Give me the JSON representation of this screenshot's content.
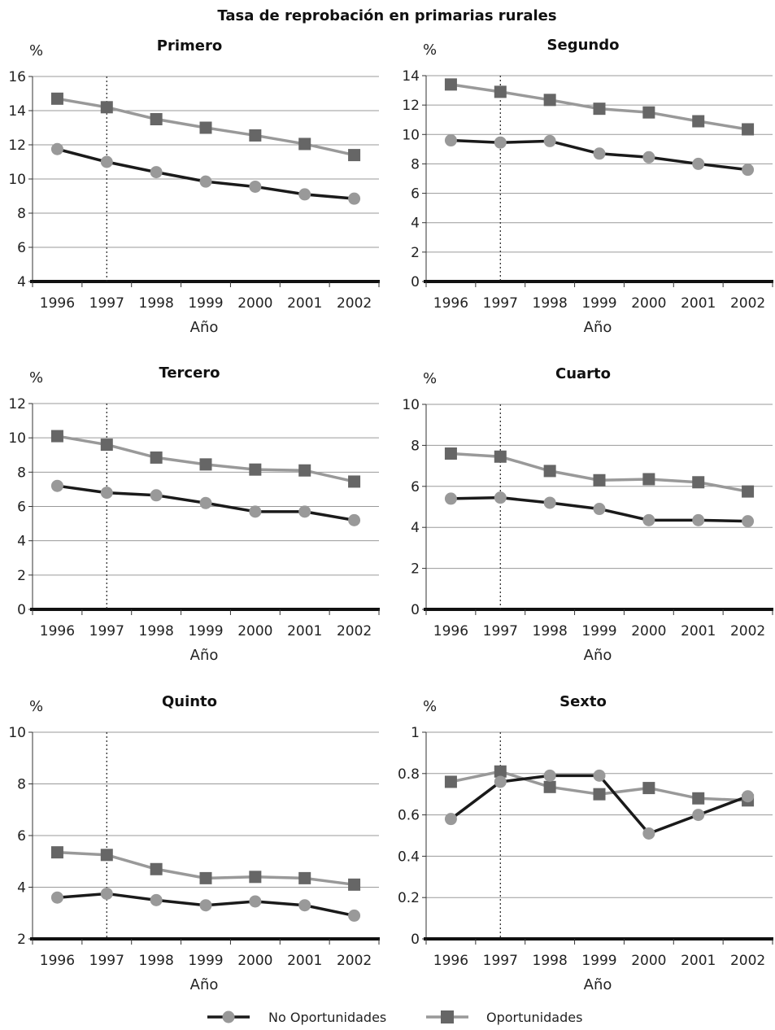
{
  "figure_title": "Tasa de reprobación en primarias rurales",
  "legend": [
    {
      "label": "No Oportunidades",
      "color": "#1a1a1a",
      "marker": "circle",
      "marker_color": "#999999"
    },
    {
      "label": "Oportunidades",
      "color": "#999999",
      "marker": "square",
      "marker_color": "#666666"
    }
  ],
  "chart_data": [
    {
      "type": "line",
      "title": "Primero",
      "ylabel": "%",
      "xlabel": "Año",
      "x": [
        "1996",
        "1997",
        "1998",
        "1999",
        "2000",
        "2001",
        "2002"
      ],
      "ylim": [
        4,
        16
      ],
      "yticks": [
        "4",
        "6",
        "8",
        "10",
        "12",
        "14",
        "16"
      ],
      "reference_line_x": "1997",
      "series": [
        {
          "name": "No Oportunidades",
          "values": [
            11.75,
            11.0,
            10.4,
            9.85,
            9.55,
            9.1,
            8.85
          ]
        },
        {
          "name": "Oportunidades",
          "values": [
            14.7,
            14.2,
            13.5,
            13.0,
            12.55,
            12.05,
            11.4
          ]
        }
      ]
    },
    {
      "type": "line",
      "title": "Segundo",
      "ylabel": "%",
      "xlabel": "Año",
      "x": [
        "1996",
        "1997",
        "1998",
        "1999",
        "2000",
        "2001",
        "2002"
      ],
      "ylim": [
        0,
        14
      ],
      "yticks": [
        "0",
        "2",
        "4",
        "6",
        "8",
        "10",
        "12",
        "14"
      ],
      "reference_line_x": "1997",
      "series": [
        {
          "name": "No Oportunidades",
          "values": [
            9.6,
            9.45,
            9.55,
            8.7,
            8.45,
            8.0,
            7.6
          ]
        },
        {
          "name": "Oportunidades",
          "values": [
            13.4,
            12.9,
            12.35,
            11.75,
            11.5,
            10.9,
            10.35
          ]
        }
      ]
    },
    {
      "type": "line",
      "title": "Tercero",
      "ylabel": "%",
      "xlabel": "Año",
      "x": [
        "1996",
        "1997",
        "1998",
        "1999",
        "2000",
        "2001",
        "2002"
      ],
      "ylim": [
        0,
        12
      ],
      "yticks": [
        "0",
        "2",
        "4",
        "6",
        "8",
        "10",
        "12"
      ],
      "reference_line_x": "1997",
      "series": [
        {
          "name": "No Oportunidades",
          "values": [
            7.2,
            6.8,
            6.65,
            6.2,
            5.7,
            5.7,
            5.2
          ]
        },
        {
          "name": "Oportunidades",
          "values": [
            10.1,
            9.6,
            8.85,
            8.45,
            8.15,
            8.1,
            7.45
          ]
        }
      ]
    },
    {
      "type": "line",
      "title": "Cuarto",
      "ylabel": "%",
      "xlabel": "Año",
      "x": [
        "1996",
        "1997",
        "1998",
        "1999",
        "2000",
        "2001",
        "2002"
      ],
      "ylim": [
        0,
        10
      ],
      "yticks": [
        "0",
        "2",
        "4",
        "6",
        "8",
        "10"
      ],
      "reference_line_x": "1997",
      "series": [
        {
          "name": "No Oportunidades",
          "values": [
            5.4,
            5.45,
            5.2,
            4.9,
            4.35,
            4.35,
            4.3
          ]
        },
        {
          "name": "Oportunidades",
          "values": [
            7.6,
            7.45,
            6.75,
            6.3,
            6.35,
            6.2,
            5.75
          ]
        }
      ]
    },
    {
      "type": "line",
      "title": "Quinto",
      "ylabel": "%",
      "xlabel": "Año",
      "x": [
        "1996",
        "1997",
        "1998",
        "1999",
        "2000",
        "2001",
        "2002"
      ],
      "ylim": [
        2,
        10
      ],
      "yticks": [
        "2",
        "4",
        "6",
        "8",
        "10"
      ],
      "reference_line_x": "1997",
      "series": [
        {
          "name": "No Oportunidades",
          "values": [
            3.6,
            3.75,
            3.5,
            3.3,
            3.45,
            3.3,
            2.9
          ]
        },
        {
          "name": "Oportunidades",
          "values": [
            5.35,
            5.25,
            4.7,
            4.35,
            4.4,
            4.35,
            4.1
          ]
        }
      ]
    },
    {
      "type": "line",
      "title": "Sexto",
      "ylabel": "%",
      "xlabel": "Año",
      "x": [
        "1996",
        "1997",
        "1998",
        "1999",
        "2000",
        "2001",
        "2002"
      ],
      "ylim": [
        0,
        1
      ],
      "yticks": [
        "0",
        "0.2",
        "0.4",
        "0.6",
        "0.8",
        "1"
      ],
      "reference_line_x": "1997",
      "series": [
        {
          "name": "No Oportunidades",
          "values": [
            0.58,
            0.76,
            0.79,
            0.79,
            0.51,
            0.6,
            0.69
          ]
        },
        {
          "name": "Oportunidades",
          "values": [
            0.76,
            0.81,
            0.735,
            0.7,
            0.73,
            0.68,
            0.67
          ]
        }
      ]
    }
  ]
}
